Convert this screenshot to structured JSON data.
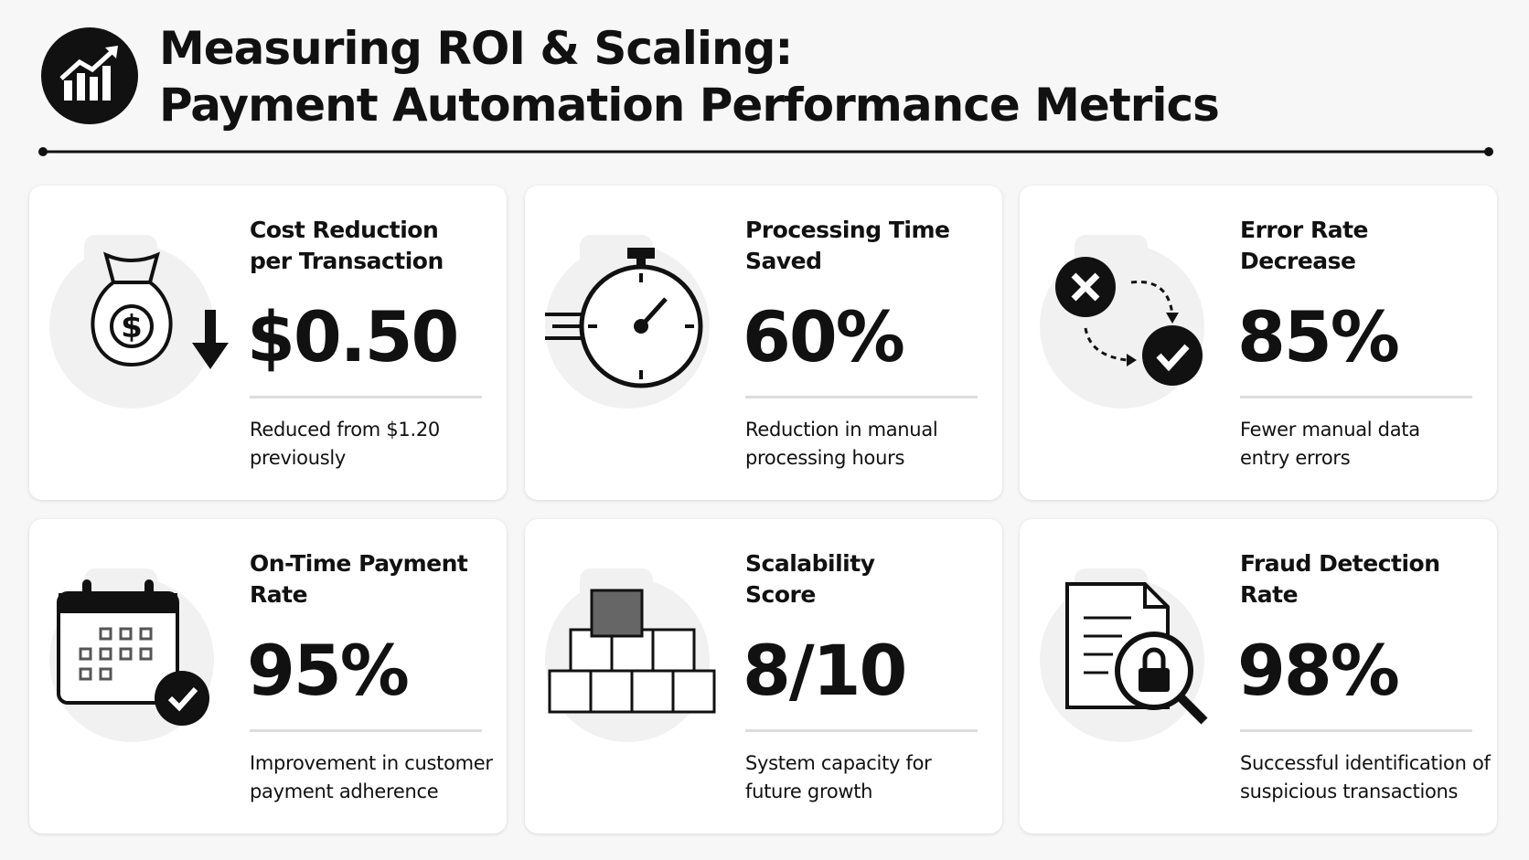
{
  "header": {
    "title": [
      "Measuring ROI & Scaling:",
      "Payment Automation Performance Metrics"
    ]
  },
  "cards": [
    {
      "title": [
        "Cost Reduction",
        "per Transaction"
      ],
      "value": "$0.50",
      "description": [
        "Reduced from $1.20",
        "previously"
      ]
    },
    {
      "title": [
        "Processing Time",
        "Saved"
      ],
      "value": "60%",
      "description": [
        "Reduction in manual",
        "processing hours"
      ]
    },
    {
      "title": [
        "Error Rate",
        "Decrease"
      ],
      "value": "85%",
      "description": [
        "Fewer manual data",
        "entry errors"
      ]
    },
    {
      "title": [
        "On-Time Payment",
        "Rate"
      ],
      "value": "95%",
      "description": [
        "Improvement in customer",
        "payment adherence"
      ]
    },
    {
      "title": [
        "Scalability",
        "Score"
      ],
      "value": "8/10",
      "description": [
        "System capacity for",
        "future growth"
      ]
    },
    {
      "title": [
        "Fraud Detection",
        "Rate"
      ],
      "value": "98%",
      "description": [
        "Successful identification of",
        "suspicious transactions"
      ]
    }
  ]
}
